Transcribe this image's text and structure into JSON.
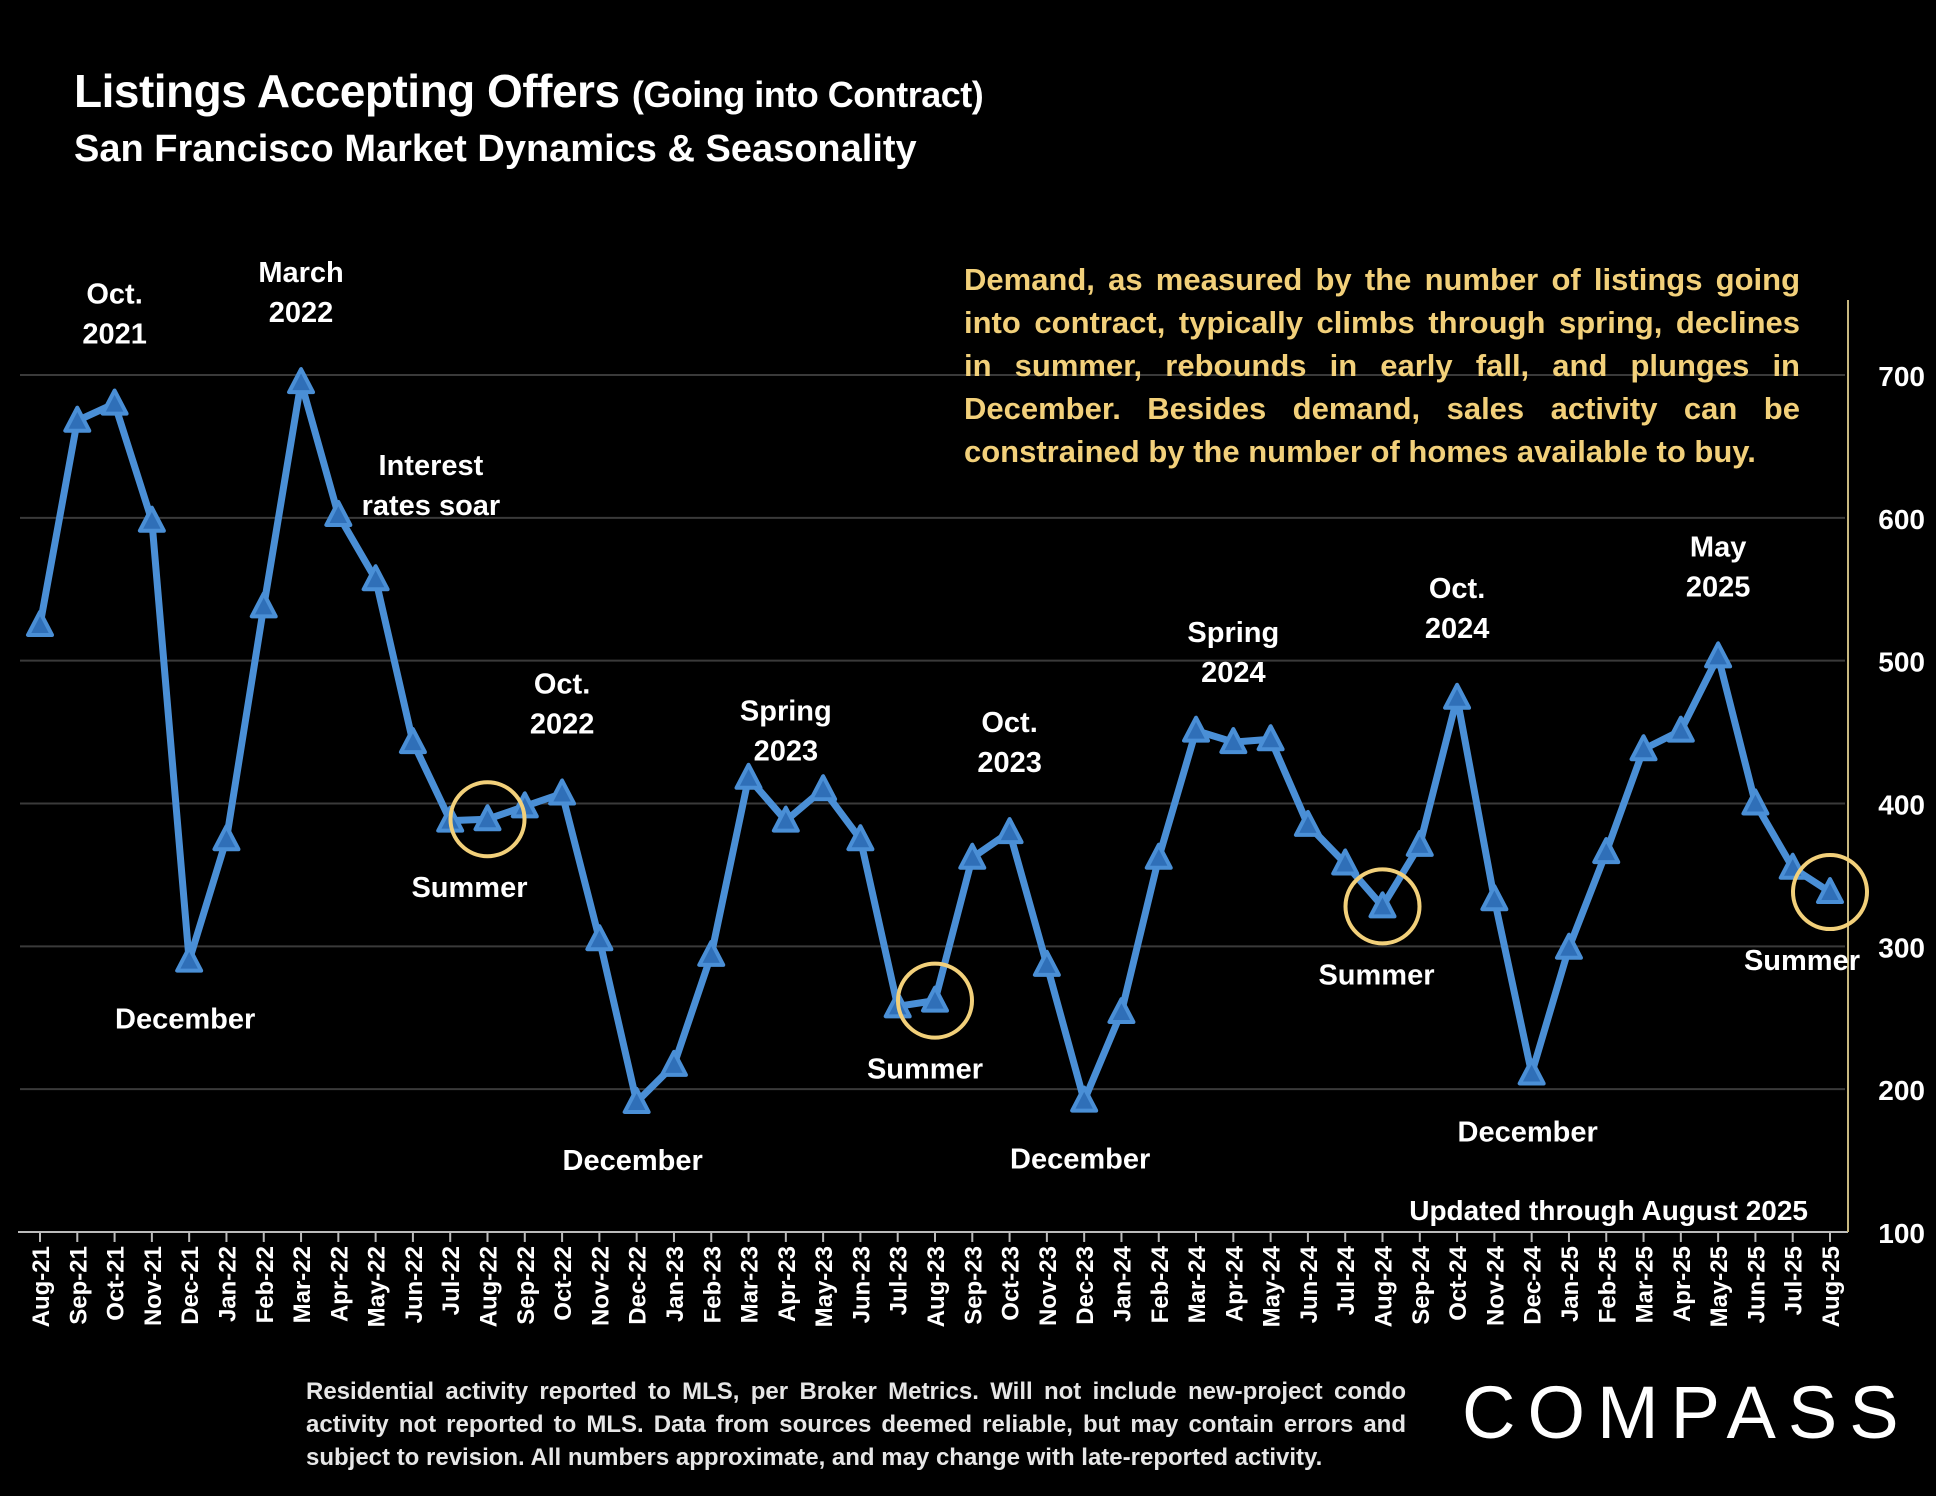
{
  "title_main": "Listings Accepting Offers",
  "title_paren": "(Going into Contract)",
  "subtitle": "San Francisco Market Dynamics & Seasonality",
  "note": "Demand, as measured by the number of listings going into contract, typically climbs through spring, declines in summer, rebounds in early fall, and plunges in December.  Besides demand, sales activity can be constrained by the number of homes available to  buy.",
  "updated": "Updated through August 2025",
  "footnote": "Residential activity reported to MLS, per Broker Metrics. Will not include new-project condo activity not reported to MLS. Data from sources deemed reliable, but may contain errors and subject to revision. All numbers approximate, and may change with late-reported activity.",
  "logo": "COMPASS",
  "colors": {
    "line": "#4a8fd6",
    "marker": "#4a8fd6",
    "circle": "#f2d07a",
    "note": "#f2d07a",
    "grid": "#3a3a3a"
  },
  "chart_data": {
    "type": "line",
    "title": "Listings Accepting Offers (Going into Contract)",
    "subtitle": "San Francisco Market Dynamics & Seasonality",
    "y_axis_side": "right",
    "ylim": [
      100,
      750
    ],
    "yticks": [
      100,
      200,
      300,
      400,
      500,
      600,
      700
    ],
    "grid": true,
    "categories": [
      "Aug-21",
      "Sep-21",
      "Oct-21",
      "Nov-21",
      "Dec-21",
      "Jan-22",
      "Feb-22",
      "Mar-22",
      "Apr-22",
      "May-22",
      "Jun-22",
      "Jul-22",
      "Aug-22",
      "Sep-22",
      "Oct-22",
      "Nov-22",
      "Dec-22",
      "Jan-23",
      "Feb-23",
      "Mar-23",
      "Apr-23",
      "May-23",
      "Jun-23",
      "Jul-23",
      "Aug-23",
      "Sep-23",
      "Oct-23",
      "Nov-23",
      "Dec-23",
      "Jan-24",
      "Feb-24",
      "Mar-24",
      "Apr-24",
      "May-24",
      "Jun-24",
      "Jul-24",
      "Aug-24",
      "Sep-24",
      "Oct-24",
      "Nov-24",
      "Dec-24",
      "Jan-25",
      "Feb-25",
      "Mar-25",
      "Apr-25",
      "May-25",
      "Jun-25",
      "Jul-25",
      "Aug-25"
    ],
    "values": [
      525,
      668,
      680,
      598,
      290,
      375,
      538,
      695,
      602,
      557,
      443,
      388,
      389,
      398,
      407,
      305,
      191,
      217,
      294,
      418,
      388,
      410,
      375,
      258,
      262,
      362,
      380,
      287,
      192,
      254,
      362,
      451,
      443,
      445,
      385,
      358,
      328,
      371,
      474,
      333,
      211,
      299,
      366,
      438,
      451,
      503,
      400,
      355,
      338
    ],
    "annotations": [
      {
        "label": [
          "Oct.",
          "2021"
        ],
        "index": 2,
        "pos": "above"
      },
      {
        "label": [
          "March",
          "2022"
        ],
        "index": 7,
        "pos": "above"
      },
      {
        "label": [
          "Interest",
          "rates soar"
        ],
        "index": 10,
        "pos": "text"
      },
      {
        "label": [
          "Oct.",
          "2022"
        ],
        "index": 14,
        "pos": "above"
      },
      {
        "label": [
          "Spring",
          "2023"
        ],
        "index": 20,
        "pos": "above"
      },
      {
        "label": [
          "Oct.",
          "2023"
        ],
        "index": 26,
        "pos": "above"
      },
      {
        "label": [
          "Spring",
          "2024"
        ],
        "index": 32,
        "pos": "above"
      },
      {
        "label": [
          "Oct.",
          "2024"
        ],
        "index": 38,
        "pos": "above"
      },
      {
        "label": [
          "May",
          "2025"
        ],
        "index": 45,
        "pos": "above"
      },
      {
        "label": [
          "December"
        ],
        "index": 4,
        "pos": "below"
      },
      {
        "label": [
          "December"
        ],
        "index": 16,
        "pos": "below"
      },
      {
        "label": [
          "December"
        ],
        "index": 28,
        "pos": "below"
      },
      {
        "label": [
          "December"
        ],
        "index": 40,
        "pos": "below"
      },
      {
        "label": [
          "Summer"
        ],
        "index": 12,
        "pos": "below",
        "circle": true
      },
      {
        "label": [
          "Summer"
        ],
        "index": 24,
        "pos": "below",
        "circle": true
      },
      {
        "label": [
          "Summer"
        ],
        "index": 36,
        "pos": "below",
        "circle": true
      },
      {
        "label": [
          "Summer"
        ],
        "index": 48,
        "pos": "below",
        "circle": true
      }
    ]
  }
}
